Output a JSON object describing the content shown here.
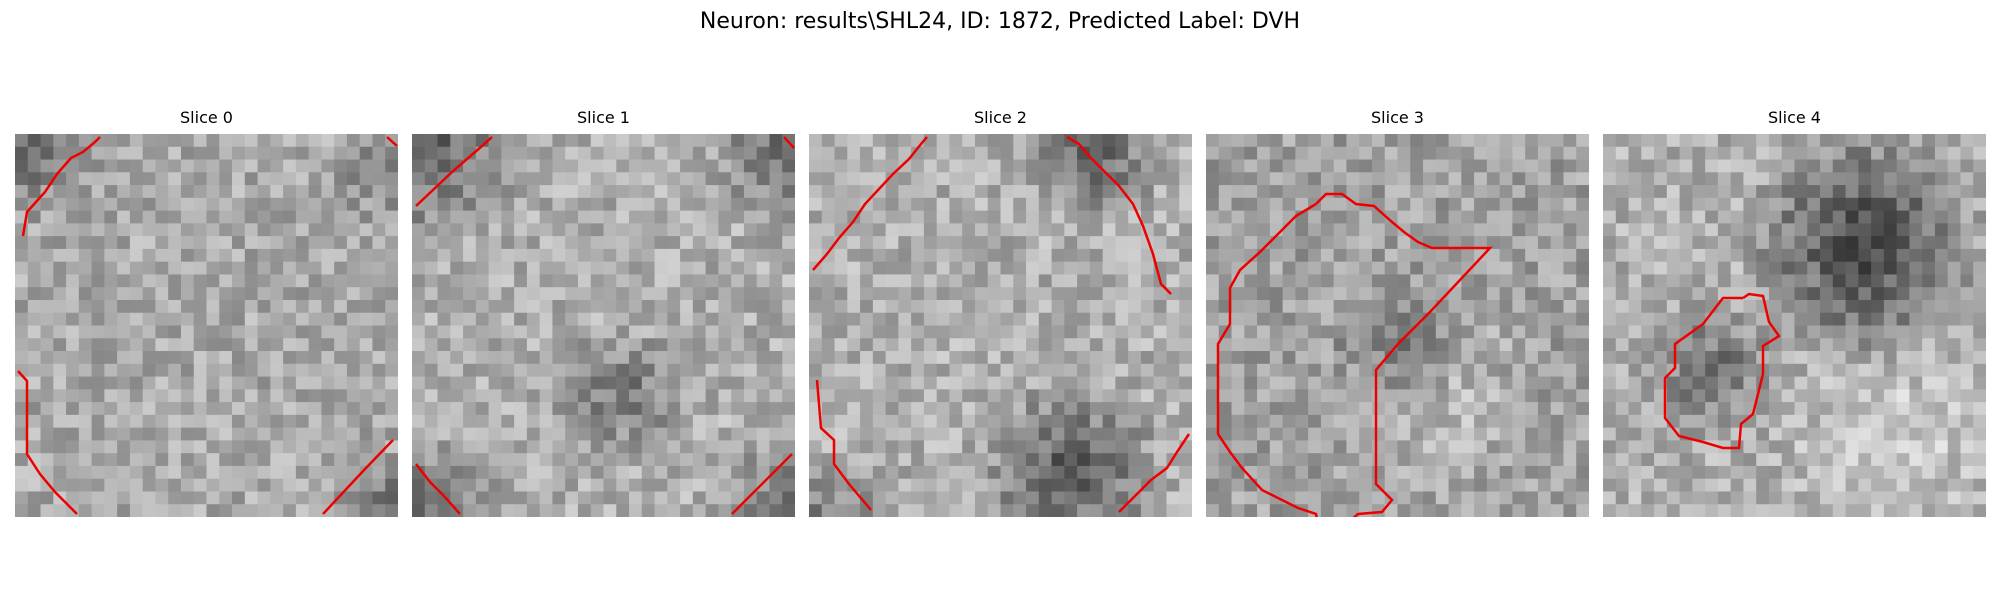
{
  "figure": {
    "title": "Neuron: results\\SHL24, ID: 1872, Predicted Label: DVH"
  },
  "panels": [
    {
      "title": "Slice 0"
    },
    {
      "title": "Slice 1"
    },
    {
      "title": "Slice 2"
    },
    {
      "title": "Slice 3"
    },
    {
      "title": "Slice 4"
    }
  ],
  "colors": {
    "contour": "#ee0000",
    "background": "#ffffff"
  }
}
